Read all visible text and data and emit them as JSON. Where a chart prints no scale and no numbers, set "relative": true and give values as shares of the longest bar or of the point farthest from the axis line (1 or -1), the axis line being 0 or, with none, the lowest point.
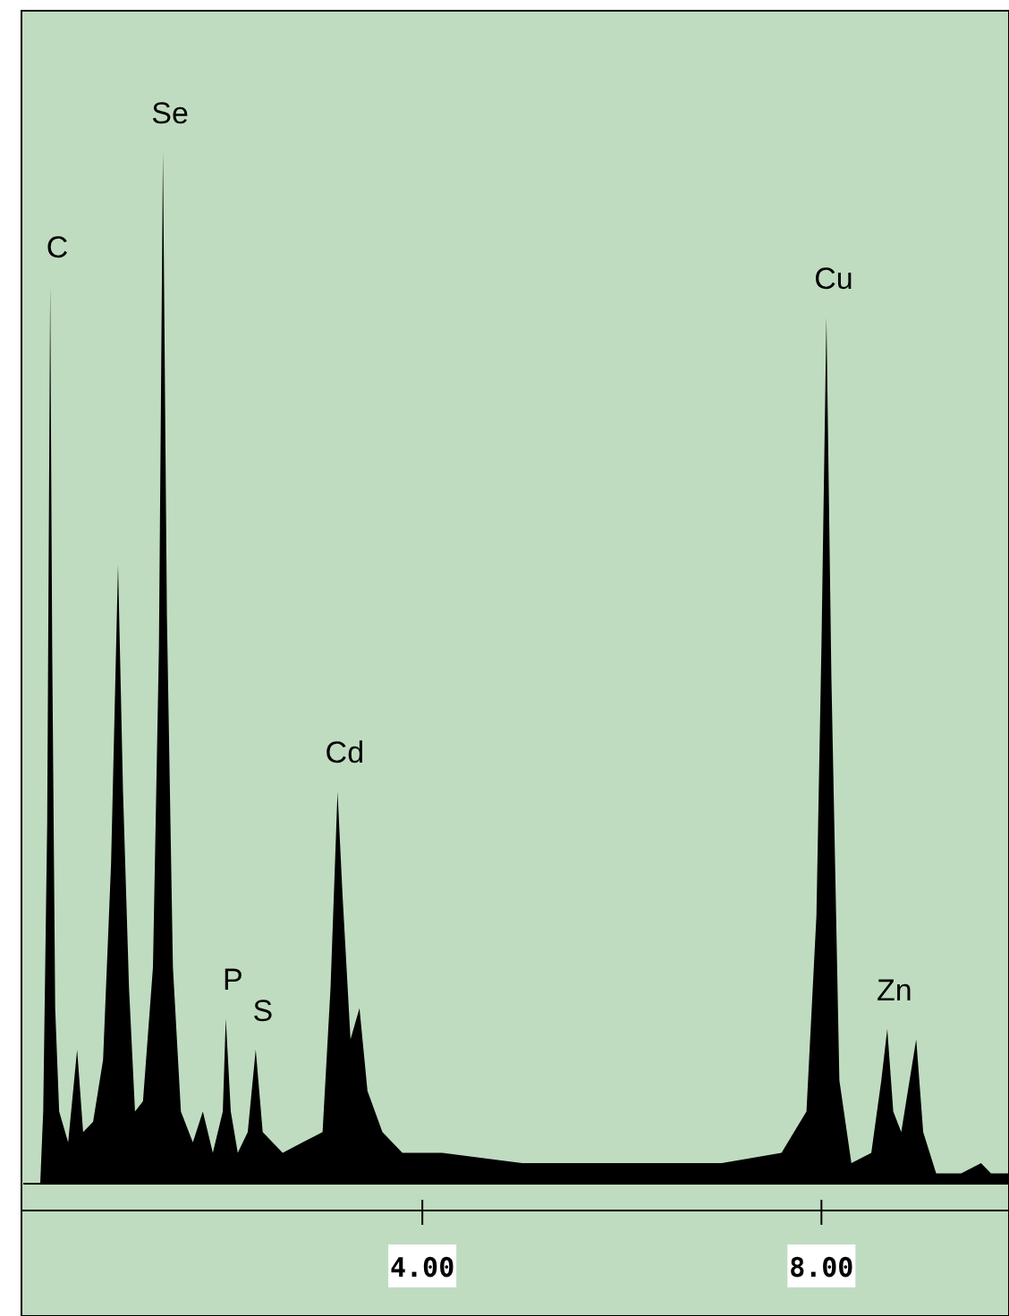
{
  "chart_data": {
    "type": "area",
    "relative": true,
    "color": "#000000",
    "x": [
      0.17,
      0.2,
      0.24,
      0.27,
      0.29,
      0.32,
      0.36,
      0.45,
      0.54,
      0.6,
      0.7,
      0.8,
      0.88,
      0.95,
      1.0,
      1.06,
      1.12,
      1.2,
      1.3,
      1.36,
      1.4,
      1.44,
      1.5,
      1.58,
      1.7,
      1.8,
      1.9,
      2.0,
      2.03,
      2.08,
      2.15,
      2.25,
      2.33,
      2.4,
      2.6,
      2.8,
      3.0,
      3.08,
      3.15,
      3.2,
      3.28,
      3.37,
      3.45,
      3.6,
      3.8,
      4.2,
      5,
      6,
      7,
      7.6,
      7.85,
      7.95,
      8.0,
      8.05,
      8.1,
      8.18,
      8.3,
      8.5,
      8.6,
      8.66,
      8.72,
      8.8,
      8.9,
      8.95,
      9.02,
      9.15,
      9.4,
      9.6,
      9.7,
      9.88
    ],
    "values": [
      0,
      0.07,
      0.35,
      0.87,
      0.52,
      0.17,
      0.07,
      0.04,
      0.13,
      0.05,
      0.06,
      0.12,
      0.31,
      0.6,
      0.38,
      0.19,
      0.07,
      0.08,
      0.21,
      0.52,
      1,
      0.55,
      0.21,
      0.07,
      0.04,
      0.07,
      0.03,
      0.07,
      0.16,
      0.07,
      0.03,
      0.05,
      0.13,
      0.05,
      0.03,
      0.04,
      0.05,
      0.19,
      0.38,
      0.28,
      0.14,
      0.17,
      0.09,
      0.05,
      0.03,
      0.03,
      0.02,
      0.02,
      0.02,
      0.03,
      0.07,
      0.26,
      0.52,
      0.84,
      0.49,
      0.1,
      0.02,
      0.03,
      0.1,
      0.15,
      0.07,
      0.05,
      0.11,
      0.14,
      0.05,
      0.01,
      0.01,
      0.02,
      0.01,
      0.01
    ],
    "xlim": [
      0,
      9.88
    ],
    "xticks": [
      {
        "value": 4,
        "label": "4.00"
      },
      {
        "value": 8,
        "label": "8.00"
      }
    ],
    "annotations": [
      {
        "text": "C",
        "x": 0.27,
        "y": 0.87
      },
      {
        "text": "Se",
        "x": 1.4,
        "y": 1
      },
      {
        "text": "P",
        "x": 2.03,
        "y": 0.16
      },
      {
        "text": "S",
        "x": 2.33,
        "y": 0.13
      },
      {
        "text": "Cd",
        "x": 3.15,
        "y": 0.38
      },
      {
        "text": "Cu",
        "x": 8.05,
        "y": 0.84
      },
      {
        "text": "Zn",
        "x": 8.66,
        "y": 0.15
      }
    ]
  }
}
